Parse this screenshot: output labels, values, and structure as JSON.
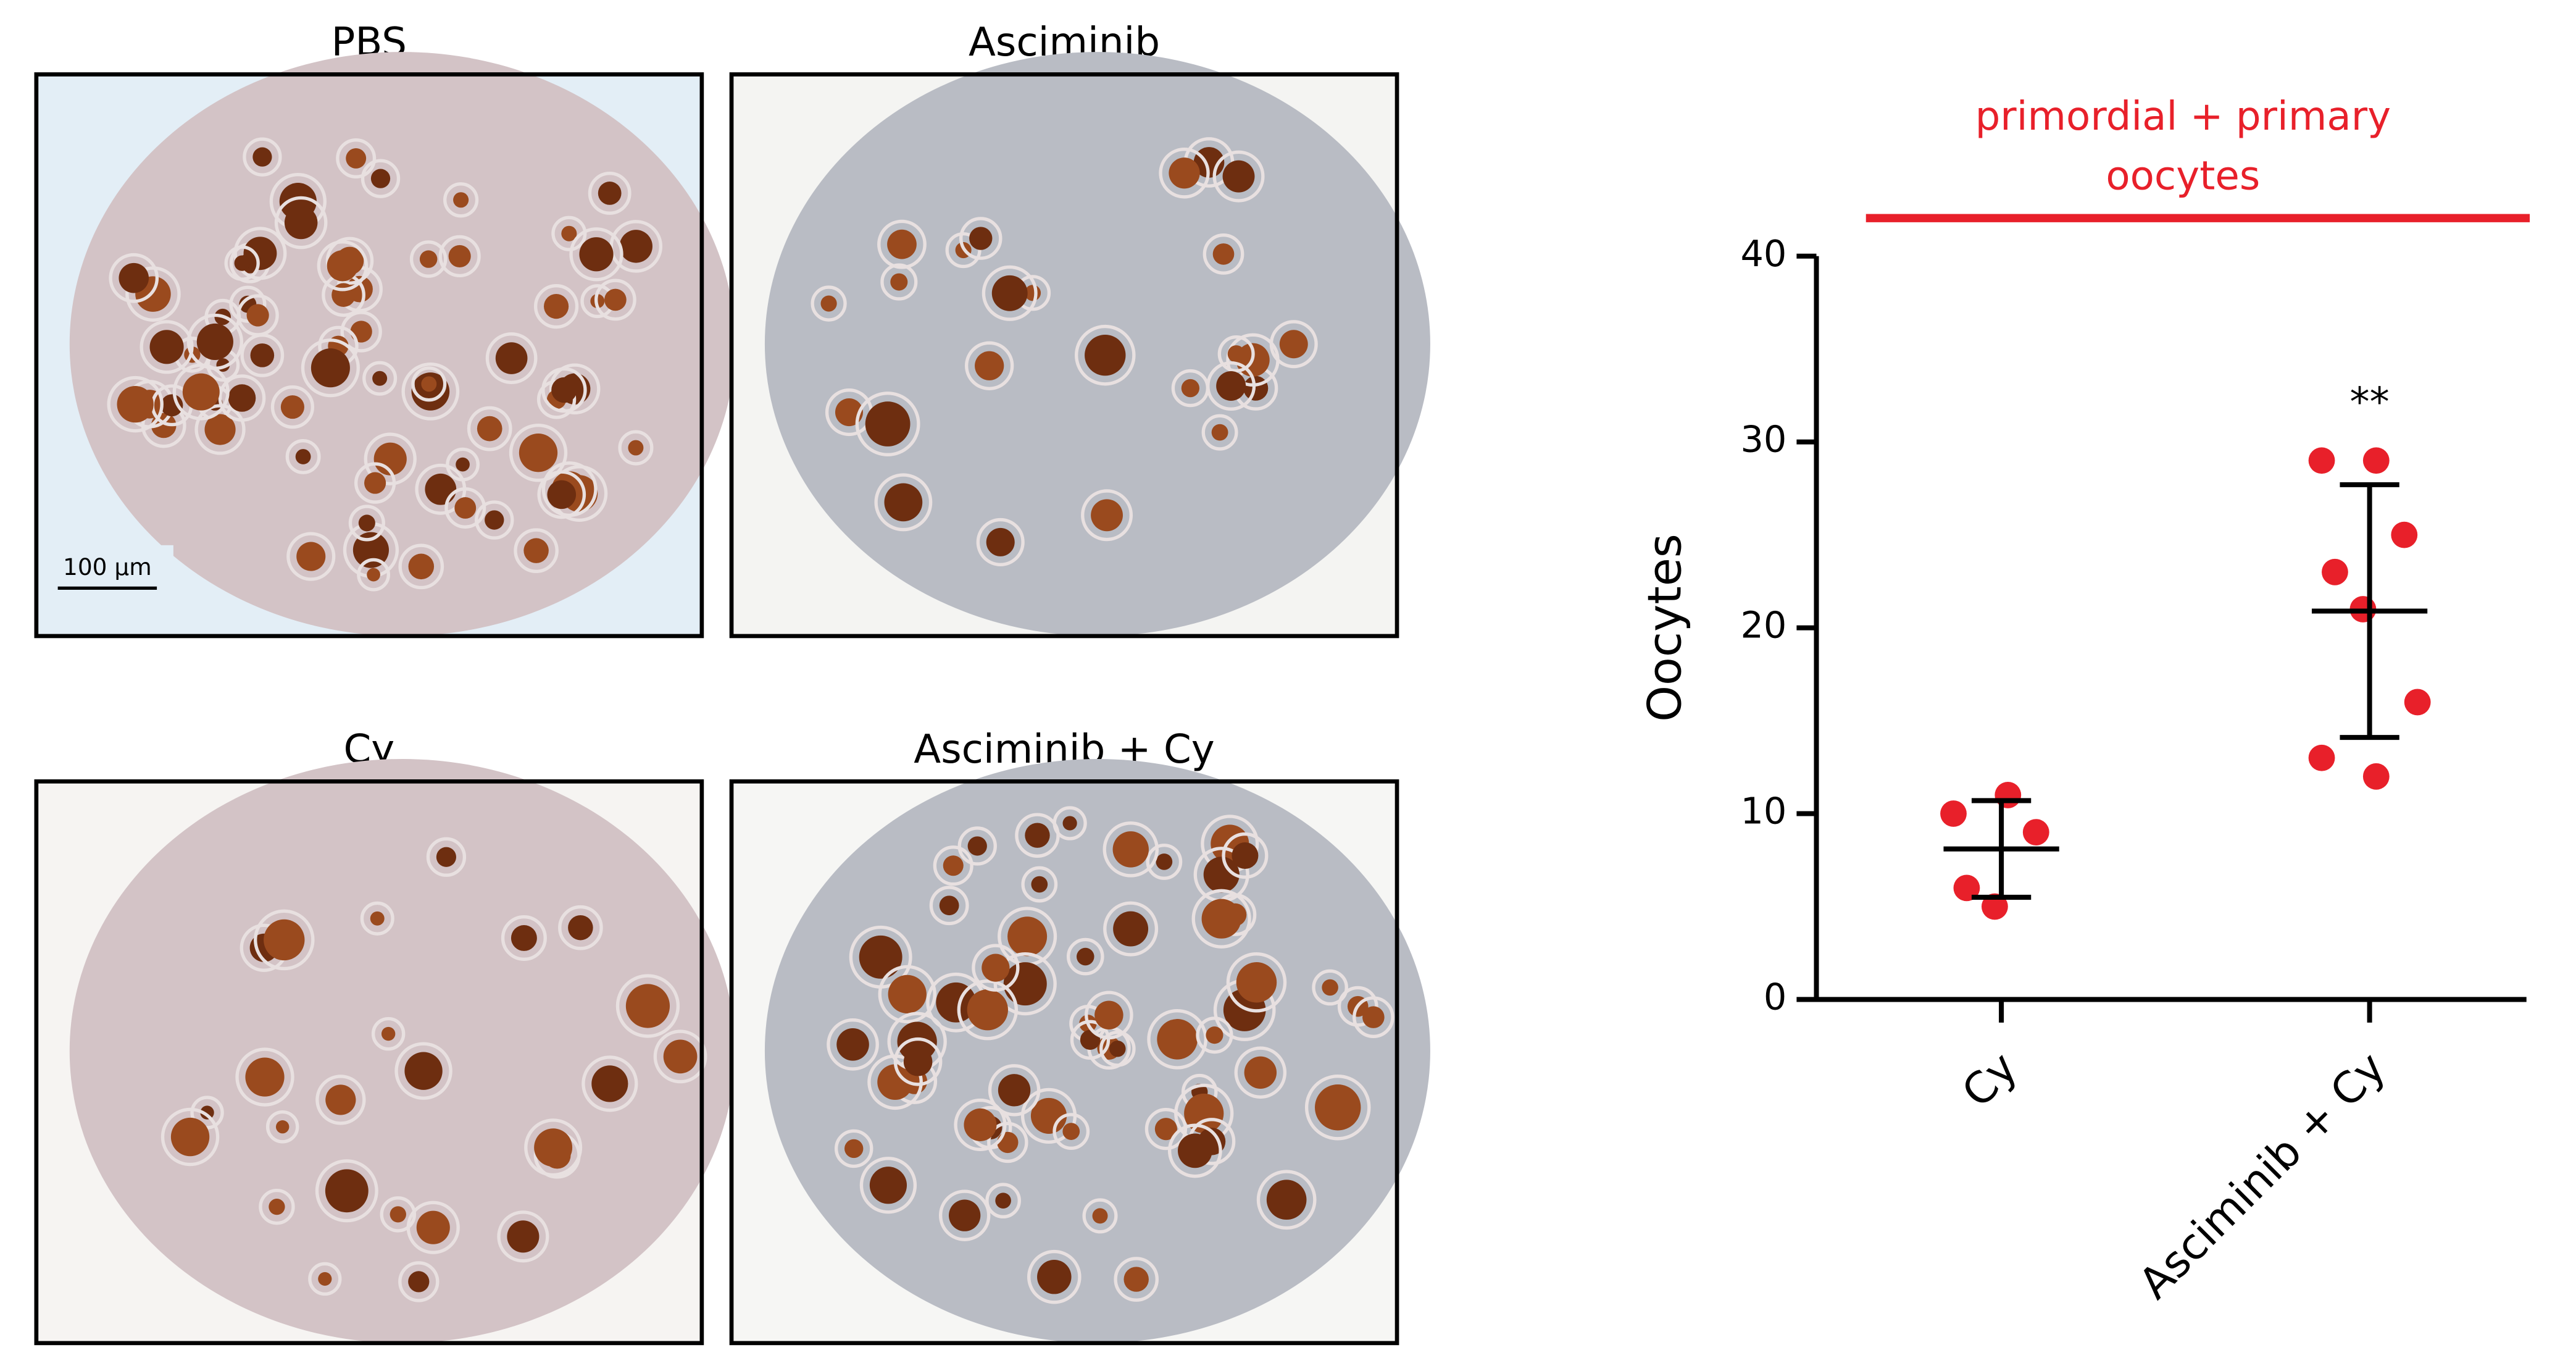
{
  "panels": [
    {
      "title": "PBS"
    },
    {
      "title": "Asciminib"
    },
    {
      "title": "Cy"
    },
    {
      "title": "Asciminib + Cy"
    }
  ],
  "scale_bar": "100 µm",
  "chart_data": {
    "type": "scatter",
    "annotation_lines": [
      "primordial + primary",
      "oocytes"
    ],
    "significance": [
      "",
      "**"
    ],
    "ylabel": "Oocytes",
    "categories": [
      "Cy",
      "Asciminib + Cy"
    ],
    "values": [
      [
        10,
        11,
        9,
        6,
        5
      ],
      [
        29,
        29,
        25,
        23,
        21,
        16,
        13,
        12
      ]
    ],
    "mean": [
      8.1,
      20.9
    ],
    "sd": [
      2.6,
      6.8
    ],
    "color": "#e8202a",
    "annotation_color": "#e8202a",
    "ylim": [
      0,
      40
    ],
    "yticks": [
      0,
      10,
      20,
      30,
      40
    ]
  }
}
